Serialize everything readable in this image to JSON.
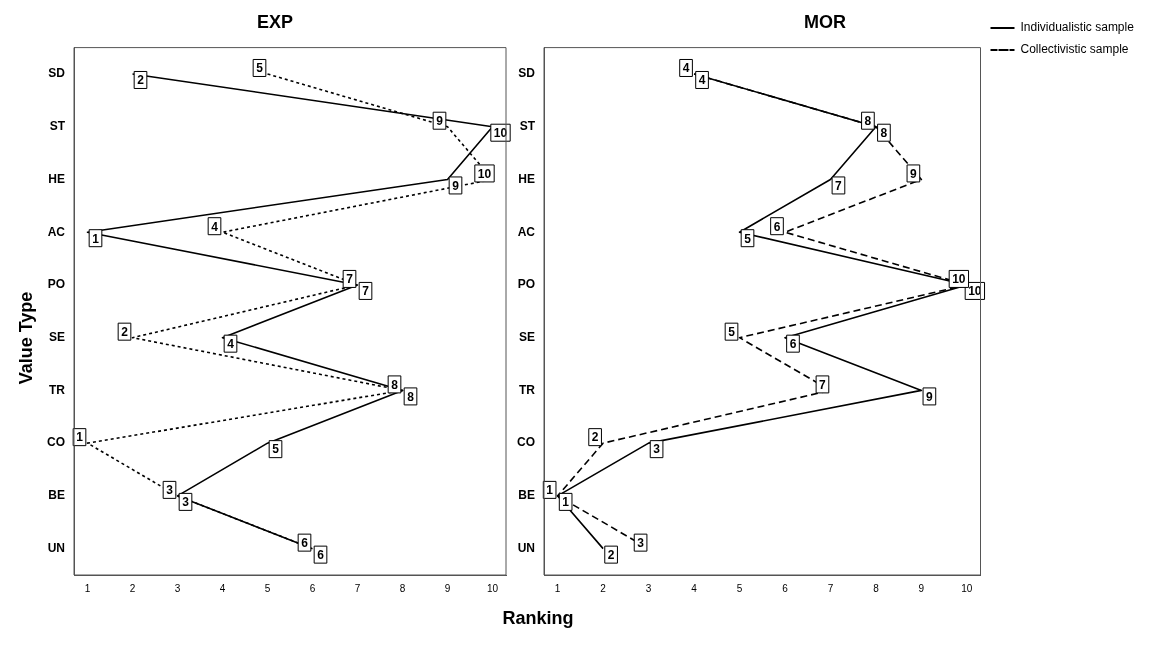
{
  "chart_data": [
    {
      "type": "line",
      "title": "EXP",
      "xlabel": "Ranking",
      "ylabel": "Value Type",
      "orientation": "horizontal",
      "categories": [
        "SD",
        "ST",
        "HE",
        "AC",
        "PO",
        "SE",
        "TR",
        "CO",
        "BE",
        "UN"
      ],
      "xlim": [
        0.7,
        10.3
      ],
      "xticks": [
        1,
        2,
        3,
        4,
        5,
        6,
        7,
        8,
        9,
        10
      ],
      "grid": false,
      "marker": "none",
      "data_labels": true,
      "series": [
        {
          "color": "#000000",
          "line_style": "solid",
          "values": [
            2,
            10,
            9,
            1,
            7,
            4,
            8,
            5,
            3,
            6
          ]
        },
        {
          "color": "#000000",
          "line_style": "dotted",
          "values": [
            5,
            9,
            10,
            4,
            7,
            2,
            8,
            1,
            3,
            6
          ]
        }
      ]
    },
    {
      "type": "line",
      "title": "MOR",
      "orientation": "horizontal",
      "categories": [
        "SD",
        "ST",
        "HE",
        "AC",
        "PO",
        "SE",
        "TR",
        "CO",
        "BE",
        "UN"
      ],
      "xlim": [
        0.7,
        10.3
      ],
      "xticks": [
        1,
        2,
        3,
        4,
        5,
        6,
        7,
        8,
        9,
        10
      ],
      "grid": false,
      "marker": "none",
      "data_labels": true,
      "legend": "right",
      "series": [
        {
          "name": "Individualistic sample",
          "color": "#000000",
          "line_style": "solid",
          "values": [
            4,
            8,
            7,
            5,
            10,
            6,
            9,
            3,
            1,
            2
          ]
        },
        {
          "name": "Collectivistic sample",
          "color": "#000000",
          "line_style": "dashed",
          "values": [
            4,
            8,
            9,
            6,
            10,
            5,
            7,
            2,
            1,
            3
          ]
        }
      ]
    }
  ]
}
